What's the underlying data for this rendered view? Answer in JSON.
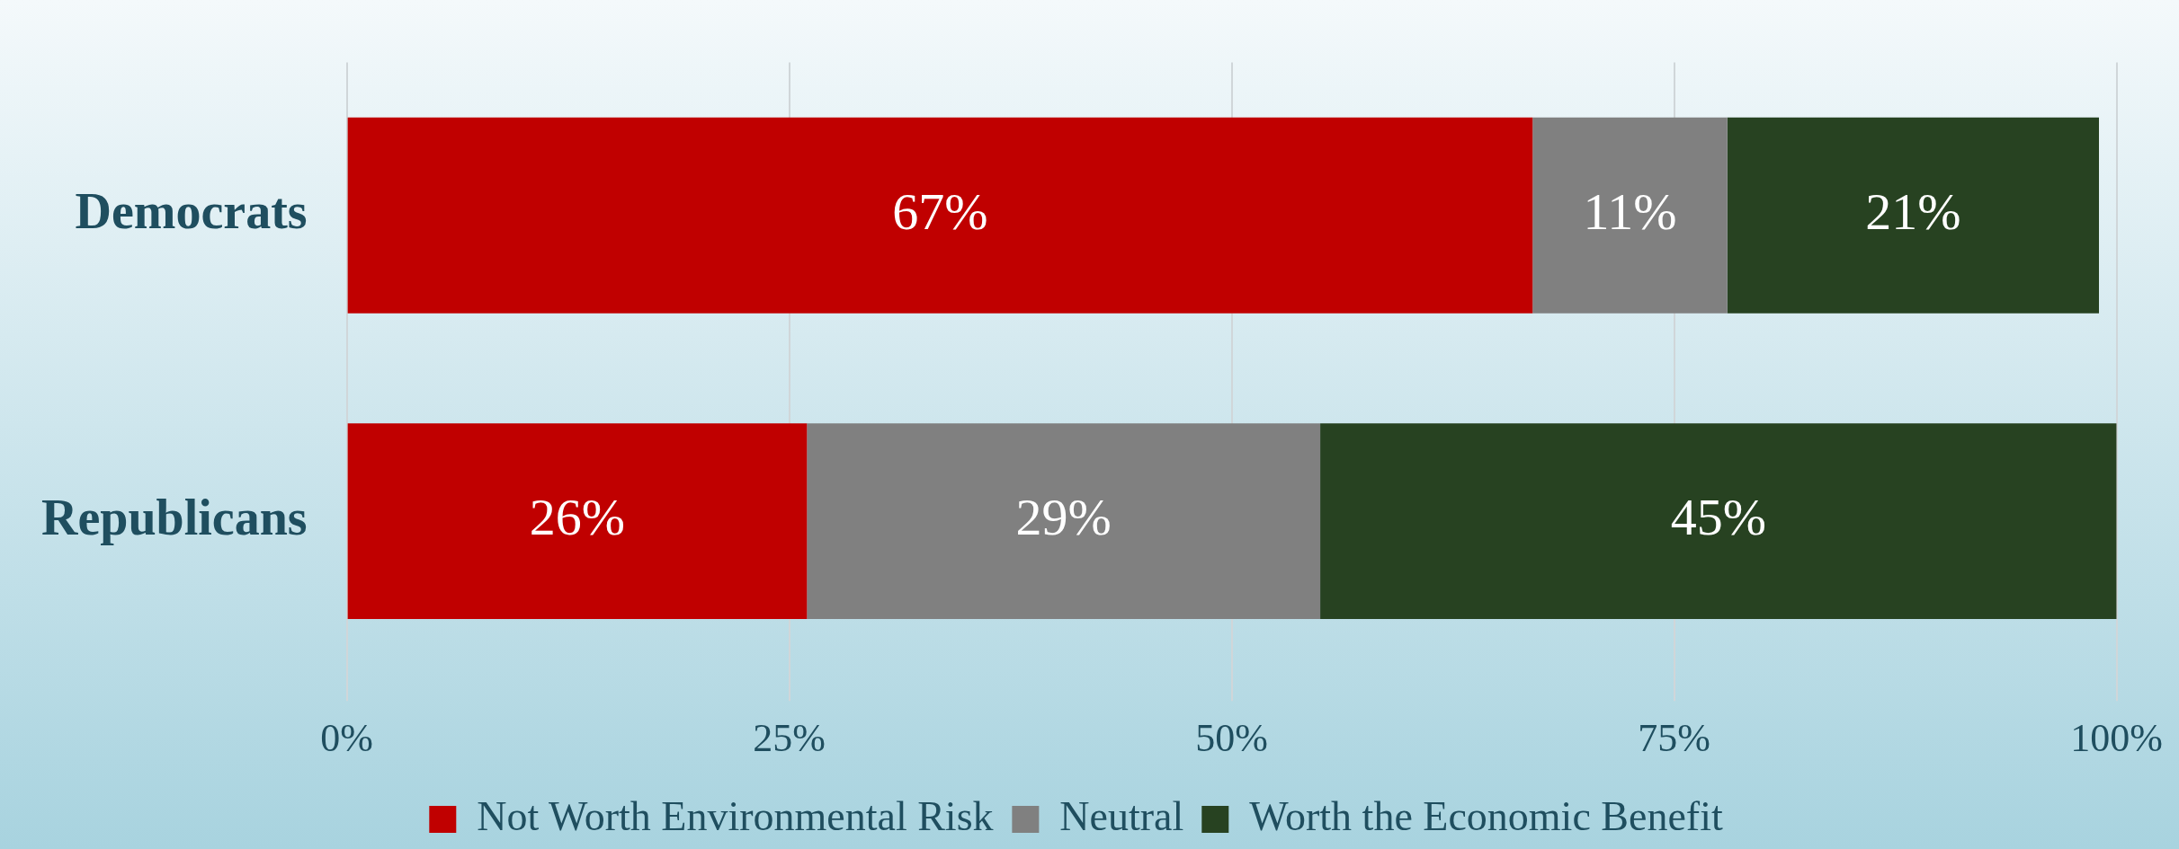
{
  "chart_data": {
    "type": "bar",
    "orientation": "horizontal",
    "stacked": true,
    "categories": [
      "Democrats",
      "Republicans"
    ],
    "series": [
      {
        "name": "Not Worth Environmental Risk",
        "color": "#c00000",
        "values": [
          67,
          26
        ],
        "value_labels": [
          "67%",
          "26%"
        ]
      },
      {
        "name": "Neutral",
        "color": "#808080",
        "values": [
          11,
          29
        ],
        "value_labels": [
          "11%",
          "29%"
        ]
      },
      {
        "name": "Worth the Economic Benefit",
        "color": "#274221",
        "values": [
          21,
          45
        ],
        "value_labels": [
          "21%",
          "45%"
        ]
      }
    ],
    "xlim": [
      0,
      100
    ],
    "xticks": [
      {
        "value": 0,
        "label": "0%"
      },
      {
        "value": 25,
        "label": "25%"
      },
      {
        "value": 50,
        "label": "50%"
      },
      {
        "value": 75,
        "label": "75%"
      },
      {
        "value": 100,
        "label": "100%"
      }
    ],
    "grid": "x",
    "legend": "bottom"
  }
}
